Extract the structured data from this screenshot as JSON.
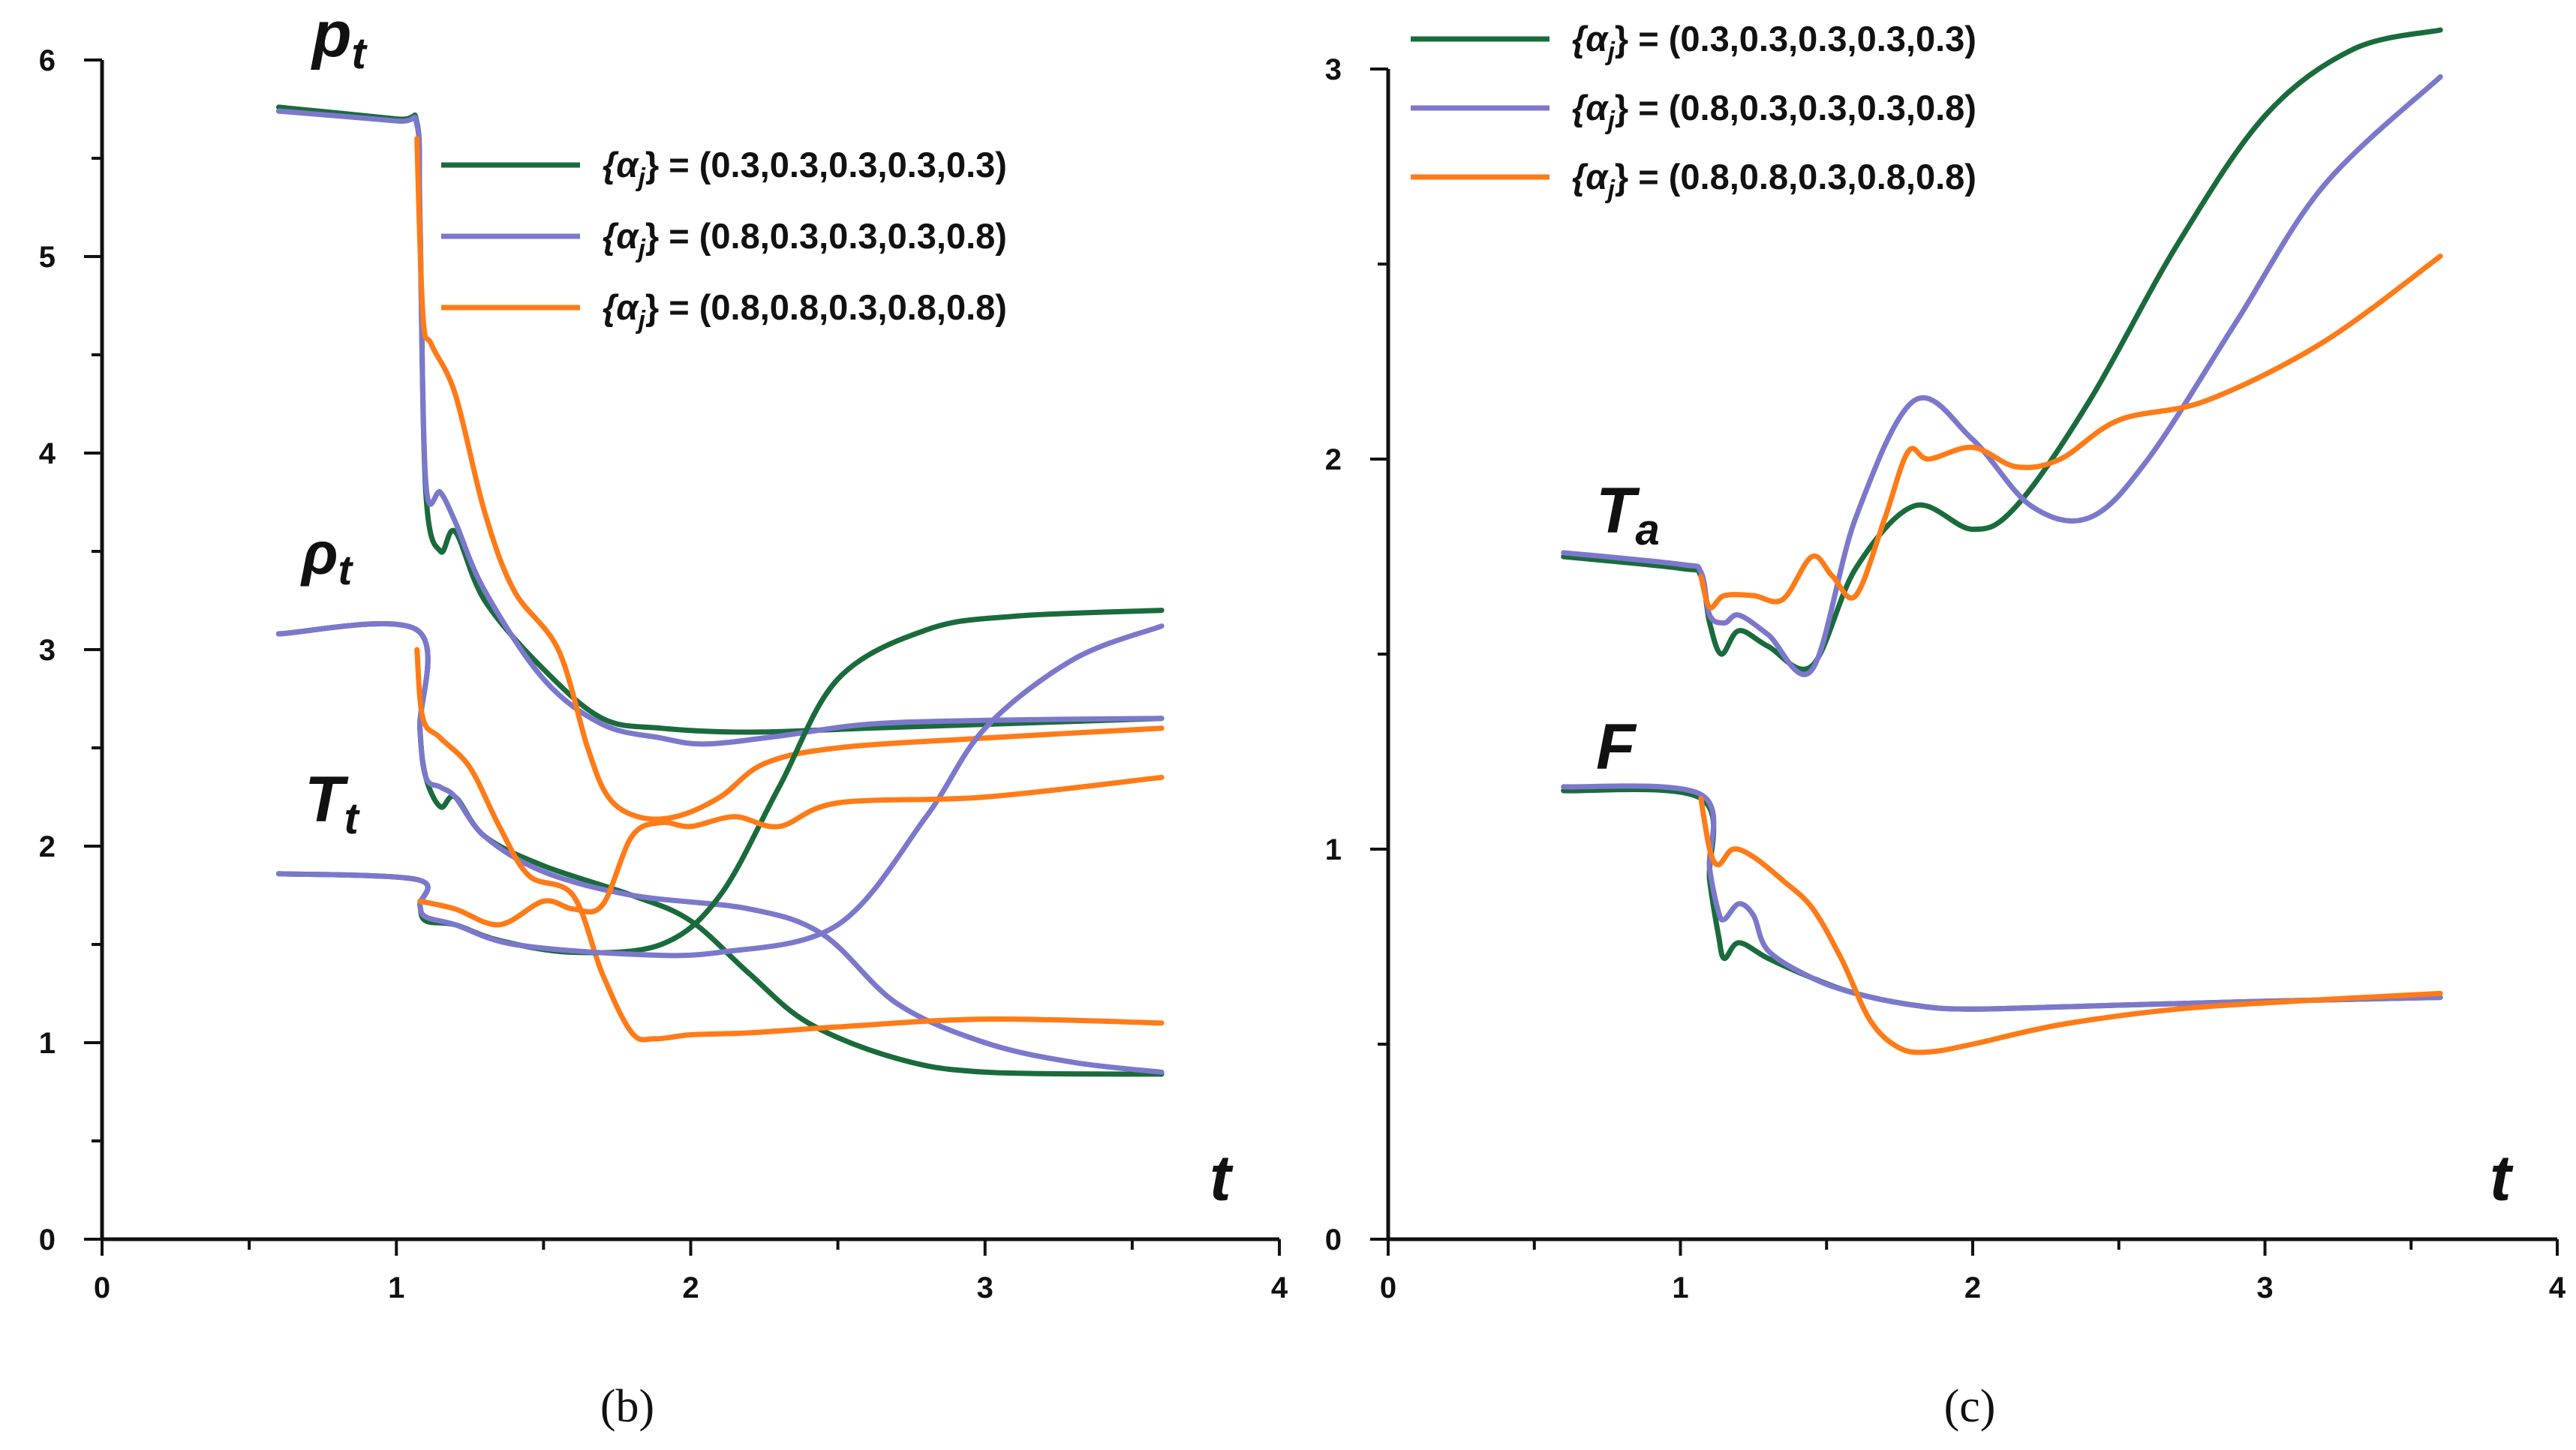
{
  "chart_data": [
    {
      "type": "line",
      "caption": "(b)",
      "xlabel": "t",
      "xlim": [
        0,
        4
      ],
      "ylim": [
        0,
        6
      ],
      "xticks": [
        "0",
        "1",
        "2",
        "3",
        "4"
      ],
      "yticks": [
        "0",
        "1",
        "2",
        "3",
        "4",
        "5",
        "6"
      ],
      "curve_labels": [
        {
          "main": "p",
          "sub": "t"
        },
        {
          "main": "ρ",
          "sub": "t"
        },
        {
          "main": "T",
          "sub": "t"
        }
      ],
      "legend": [
        {
          "prefix": "{α",
          "sub": "j",
          "text": "} = (0.3,0.3,0.3,0.3,0.3)",
          "color": "#1a6b3c"
        },
        {
          "prefix": "{α",
          "sub": "j",
          "text": "} = (0.8,0.3,0.3,0.3,0.8)",
          "color": "#7b78cc"
        },
        {
          "prefix": "{α",
          "sub": "j",
          "text": "} = (0.8,0.8,0.3,0.8,0.8)",
          "color": "#ff7b18"
        }
      ],
      "series": [
        {
          "name": "p_t, α=(0.3,...)",
          "color": "#1a6b3c",
          "x": [
            0.6,
            1.0,
            1.07,
            1.08,
            1.1,
            1.15,
            1.2,
            1.3,
            1.5,
            1.7,
            1.9,
            2.2,
            2.6,
            3.0,
            3.6
          ],
          "y": [
            5.76,
            5.7,
            5.68,
            5.2,
            3.8,
            3.5,
            3.6,
            3.25,
            2.9,
            2.65,
            2.6,
            2.58,
            2.6,
            2.62,
            2.65
          ]
        },
        {
          "name": "p_t, α=(0.8,0.3,...)",
          "color": "#7b78cc",
          "x": [
            0.6,
            1.0,
            1.07,
            1.08,
            1.1,
            1.15,
            1.2,
            1.3,
            1.5,
            1.7,
            1.9,
            2.05,
            2.3,
            2.6,
            3.0,
            3.6
          ],
          "y": [
            5.74,
            5.69,
            5.67,
            5.2,
            3.85,
            3.8,
            3.65,
            3.3,
            2.85,
            2.62,
            2.55,
            2.52,
            2.56,
            2.62,
            2.64,
            2.65
          ]
        },
        {
          "name": "p_t, α=(0.8,0.8,...)",
          "color": "#ff7b18",
          "x": [
            1.07,
            1.09,
            1.12,
            1.2,
            1.3,
            1.4,
            1.55,
            1.65,
            1.72,
            1.82,
            1.95,
            2.1,
            2.25,
            2.5,
            3.0,
            3.6
          ],
          "y": [
            5.6,
            4.7,
            4.55,
            4.3,
            3.7,
            3.3,
            3.0,
            2.5,
            2.25,
            2.15,
            2.15,
            2.25,
            2.42,
            2.5,
            2.55,
            2.6
          ]
        },
        {
          "name": "rho_t, α=(0.3,...)",
          "color": "#1a6b3c",
          "x": [
            0.6,
            1.07,
            1.08,
            1.1,
            1.15,
            1.2,
            1.3,
            1.5,
            1.8,
            2.0,
            2.2,
            2.4,
            2.7,
            3.0,
            3.6
          ],
          "y": [
            3.08,
            3.1,
            2.6,
            2.35,
            2.2,
            2.25,
            2.05,
            1.9,
            1.75,
            1.62,
            1.35,
            1.1,
            0.92,
            0.85,
            0.84
          ]
        },
        {
          "name": "rho_t, α=(0.8,0.3,...)",
          "color": "#7b78cc",
          "x": [
            0.6,
            1.07,
            1.08,
            1.1,
            1.15,
            1.2,
            1.3,
            1.5,
            1.8,
            2.2,
            2.45,
            2.7,
            3.0,
            3.3,
            3.6
          ],
          "y": [
            3.08,
            3.1,
            2.6,
            2.35,
            2.3,
            2.25,
            2.05,
            1.87,
            1.75,
            1.68,
            1.55,
            1.2,
            1.0,
            0.9,
            0.85
          ]
        },
        {
          "name": "rho_t, α=(0.8,0.8,...)",
          "color": "#ff7b18",
          "x": [
            1.07,
            1.09,
            1.15,
            1.25,
            1.35,
            1.45,
            1.6,
            1.7,
            1.8,
            1.88,
            2.0,
            2.2,
            2.5,
            3.0,
            3.6
          ],
          "y": [
            3.0,
            2.65,
            2.55,
            2.4,
            2.1,
            1.85,
            1.75,
            1.35,
            1.05,
            1.02,
            1.04,
            1.05,
            1.08,
            1.12,
            1.1
          ]
        },
        {
          "name": "T_t, α=(0.3,...)",
          "color": "#1a6b3c",
          "x": [
            0.6,
            1.07,
            1.08,
            1.1,
            1.2,
            1.35,
            1.6,
            1.9,
            2.1,
            2.3,
            2.5,
            2.8,
            3.1,
            3.6
          ],
          "y": [
            1.86,
            1.83,
            1.7,
            1.62,
            1.6,
            1.52,
            1.46,
            1.5,
            1.75,
            2.3,
            2.85,
            3.1,
            3.17,
            3.2
          ]
        },
        {
          "name": "T_t, α=(0.8,0.3,...)",
          "color": "#7b78cc",
          "x": [
            0.6,
            1.07,
            1.08,
            1.1,
            1.2,
            1.4,
            1.8,
            2.1,
            2.5,
            2.8,
            3.0,
            3.3,
            3.6
          ],
          "y": [
            1.86,
            1.83,
            1.7,
            1.64,
            1.6,
            1.5,
            1.45,
            1.46,
            1.6,
            2.15,
            2.6,
            2.95,
            3.12
          ]
        },
        {
          "name": "T_t, α=(0.8,0.8,...)",
          "color": "#ff7b18",
          "x": [
            1.08,
            1.2,
            1.35,
            1.5,
            1.6,
            1.7,
            1.8,
            1.9,
            2.0,
            2.15,
            2.3,
            2.5,
            3.0,
            3.6
          ],
          "y": [
            1.72,
            1.68,
            1.6,
            1.72,
            1.68,
            1.7,
            2.05,
            2.12,
            2.1,
            2.15,
            2.1,
            2.22,
            2.25,
            2.35
          ]
        }
      ]
    },
    {
      "type": "line",
      "caption": "(c)",
      "xlabel": "t",
      "xlim": [
        0,
        4
      ],
      "ylim": [
        0,
        3
      ],
      "xticks": [
        "0",
        "1",
        "2",
        "3",
        "4"
      ],
      "yticks": [
        "0",
        "1",
        "2",
        "3"
      ],
      "curve_labels": [
        {
          "main": "T",
          "sub": "a"
        },
        {
          "main": "F",
          "sub": ""
        }
      ],
      "legend": [
        {
          "prefix": "{α",
          "sub": "j",
          "text": "} = (0.3,0.3,0.3,0.3,0.3)",
          "color": "#1a6b3c"
        },
        {
          "prefix": "{α",
          "sub": "j",
          "text": "} = (0.8,0.3,0.3,0.3,0.8)",
          "color": "#7b78cc"
        },
        {
          "prefix": "{α",
          "sub": "j",
          "text": "} = (0.8,0.8,0.3,0.8,0.8)",
          "color": "#ff7b18"
        }
      ],
      "series": [
        {
          "name": "T_a, α=(0.3,...)",
          "color": "#1a6b3c",
          "x": [
            0.6,
            1.0,
            1.07,
            1.1,
            1.14,
            1.2,
            1.3,
            1.45,
            1.6,
            1.8,
            2.0,
            2.15,
            2.4,
            2.7,
            3.0,
            3.3,
            3.6
          ],
          "y": [
            1.75,
            1.72,
            1.7,
            1.58,
            1.5,
            1.56,
            1.52,
            1.47,
            1.72,
            1.88,
            1.82,
            1.88,
            2.15,
            2.55,
            2.88,
            3.05,
            3.1
          ]
        },
        {
          "name": "T_a, α=(0.8,0.3,...)",
          "color": "#7b78cc",
          "x": [
            0.6,
            1.0,
            1.07,
            1.1,
            1.15,
            1.2,
            1.3,
            1.45,
            1.6,
            1.8,
            2.0,
            2.2,
            2.4,
            2.6,
            2.9,
            3.2,
            3.6
          ],
          "y": [
            1.76,
            1.73,
            1.71,
            1.6,
            1.58,
            1.6,
            1.55,
            1.46,
            1.85,
            2.15,
            2.05,
            1.88,
            1.85,
            2.0,
            2.35,
            2.7,
            2.98
          ]
        },
        {
          "name": "T_a, α=(0.8,0.8,...)",
          "color": "#ff7b18",
          "x": [
            1.07,
            1.1,
            1.15,
            1.25,
            1.35,
            1.45,
            1.52,
            1.6,
            1.7,
            1.78,
            1.85,
            2.0,
            2.15,
            2.3,
            2.5,
            2.8,
            3.2,
            3.6
          ],
          "y": [
            1.7,
            1.62,
            1.65,
            1.65,
            1.64,
            1.75,
            1.7,
            1.65,
            1.85,
            2.02,
            2.0,
            2.03,
            1.98,
            2.0,
            2.1,
            2.15,
            2.3,
            2.52
          ]
        },
        {
          "name": "F, α=(0.3,...)",
          "color": "#1a6b3c",
          "x": [
            0.6,
            1.07,
            1.1,
            1.13,
            1.15,
            1.2,
            1.3,
            1.45,
            1.6,
            1.8,
            2.0,
            2.5,
            3.0,
            3.6
          ],
          "y": [
            1.15,
            1.13,
            0.92,
            0.78,
            0.72,
            0.76,
            0.72,
            0.67,
            0.63,
            0.6,
            0.59,
            0.6,
            0.61,
            0.62
          ]
        },
        {
          "name": "F, α=(0.8,0.3,...)",
          "color": "#7b78cc",
          "x": [
            0.6,
            1.07,
            1.1,
            1.13,
            1.15,
            1.2,
            1.25,
            1.3,
            1.45,
            1.6,
            1.8,
            2.0,
            2.5,
            3.0,
            3.6
          ],
          "y": [
            1.16,
            1.14,
            0.95,
            0.84,
            0.82,
            0.86,
            0.83,
            0.74,
            0.67,
            0.63,
            0.6,
            0.59,
            0.6,
            0.61,
            0.62
          ]
        },
        {
          "name": "F, α=(0.8,0.8,...)",
          "color": "#ff7b18",
          "x": [
            1.07,
            1.1,
            1.13,
            1.18,
            1.25,
            1.35,
            1.45,
            1.55,
            1.65,
            1.75,
            1.85,
            2.0,
            2.3,
            2.7,
            3.1,
            3.6
          ],
          "y": [
            1.13,
            1.0,
            0.96,
            1.0,
            0.98,
            0.92,
            0.85,
            0.72,
            0.56,
            0.49,
            0.48,
            0.5,
            0.55,
            0.59,
            0.61,
            0.63
          ]
        }
      ]
    }
  ]
}
